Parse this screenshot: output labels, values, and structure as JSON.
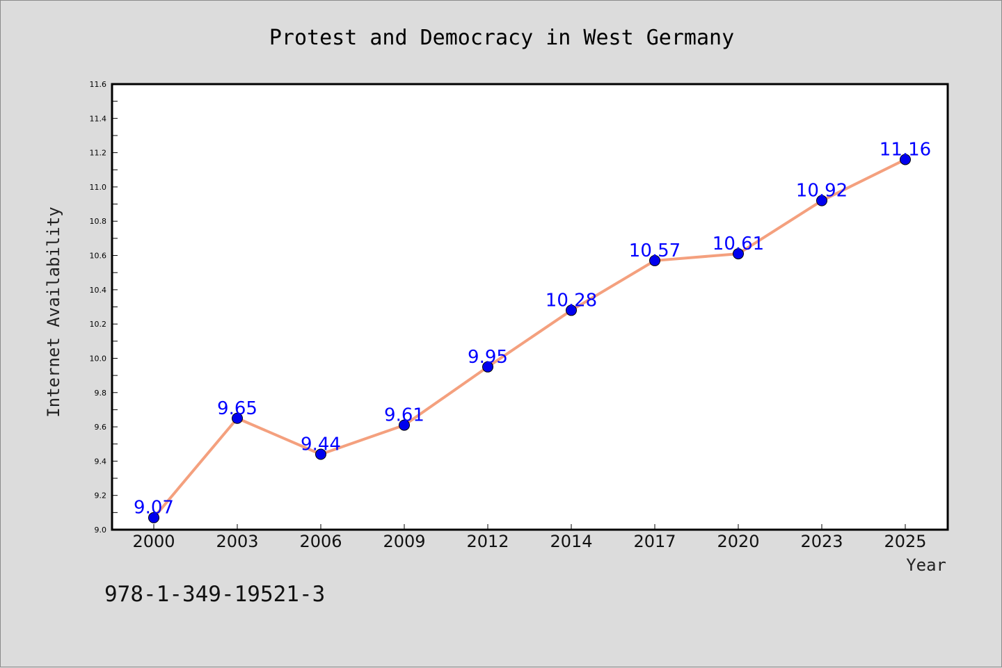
{
  "chart_data": {
    "type": "line",
    "title": "Protest and Democracy in West Germany",
    "xlabel": "Year",
    "ylabel": "Internet Availability",
    "categories": [
      "2000",
      "2003",
      "2006",
      "2009",
      "2012",
      "2014",
      "2017",
      "2020",
      "2023",
      "2025"
    ],
    "series": [
      {
        "values": [
          9.07,
          9.65,
          9.44,
          9.61,
          9.95,
          10.28,
          10.57,
          10.61,
          10.92,
          11.16
        ],
        "line_color": "#f4a07e",
        "marker_color": "#0000ee"
      }
    ],
    "data_labels": [
      "9.07",
      "9.65",
      "9.44",
      "9.61",
      "9.95",
      "10.28",
      "10.57",
      "10.61",
      "10.92",
      "11.16"
    ],
    "ylim": [
      9.0,
      11.6
    ],
    "yticks": [
      "9.0",
      "9.2",
      "9.4",
      "9.6",
      "9.8",
      "10.0",
      "10.2",
      "10.4",
      "10.6",
      "10.8",
      "11.0",
      "11.2",
      "11.4",
      "11.6"
    ],
    "grid": false,
    "label_color": "#0000ff"
  },
  "footer": {
    "isbn": "978-1-349-19521-3"
  }
}
